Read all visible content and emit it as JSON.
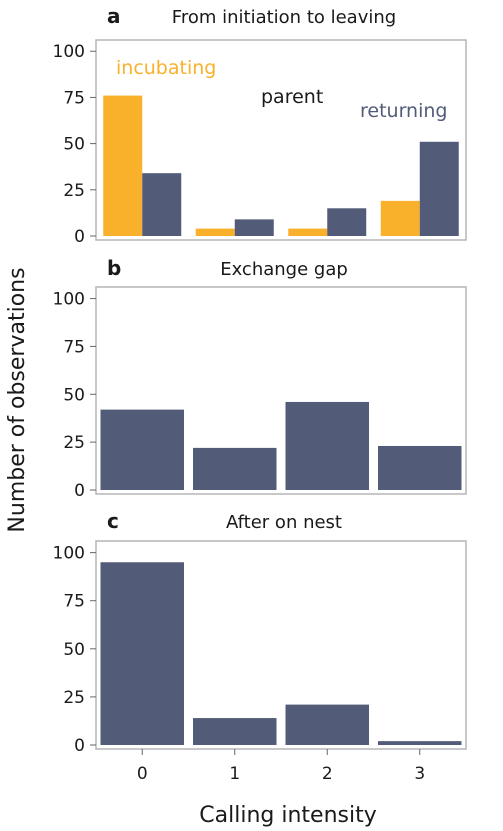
{
  "colors": {
    "incubating": "#F9B12C",
    "returning": "#525C78",
    "text": "#1a1a1a",
    "parent_label": "#1a1a1a"
  },
  "ylabel": "Number of observations",
  "xlabel": "Calling intensity",
  "chart_data": [
    {
      "type": "bar",
      "panel_letter": "a",
      "title": "From initiation to leaving",
      "categories": [
        "0",
        "1",
        "2",
        "3"
      ],
      "xlabel": "Calling intensity",
      "ylabel": "Number of observations",
      "ylim": [
        0,
        105
      ],
      "yticks": [
        0,
        25,
        50,
        75,
        100
      ],
      "legend_title": "parent",
      "series": [
        {
          "name": "incubating",
          "color": "#F9B12C",
          "values": [
            76,
            4,
            4,
            19
          ]
        },
        {
          "name": "returning",
          "color": "#525C78",
          "values": [
            34,
            9,
            15,
            51
          ]
        }
      ]
    },
    {
      "type": "bar",
      "panel_letter": "b",
      "title": "Exchange gap",
      "categories": [
        "0",
        "1",
        "2",
        "3"
      ],
      "xlabel": "Calling intensity",
      "ylabel": "Number of observations",
      "ylim": [
        0,
        105
      ],
      "yticks": [
        0,
        25,
        50,
        75,
        100
      ],
      "series": [
        {
          "color": "#525C78",
          "values": [
            42,
            22,
            46,
            23
          ]
        }
      ]
    },
    {
      "type": "bar",
      "panel_letter": "c",
      "title": "After on nest",
      "categories": [
        "0",
        "1",
        "2",
        "3"
      ],
      "xlabel": "Calling intensity",
      "ylabel": "Number of observations",
      "ylim": [
        0,
        105
      ],
      "yticks": [
        0,
        25,
        50,
        75,
        100
      ],
      "series": [
        {
          "color": "#525C78",
          "values": [
            95,
            14,
            21,
            2
          ]
        }
      ]
    }
  ]
}
